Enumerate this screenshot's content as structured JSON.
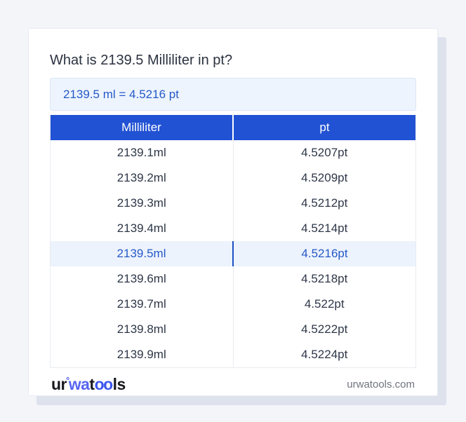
{
  "page": {
    "title": "What is 2139.5 Milliliter in pt?"
  },
  "result": {
    "text": "2139.5 ml = 4.5216 pt"
  },
  "table": {
    "headers": [
      "Milliliter",
      "pt"
    ],
    "rows": [
      {
        "ml": "2139.1ml",
        "pt": "4.5207pt"
      },
      {
        "ml": "2139.2ml",
        "pt": "4.5209pt"
      },
      {
        "ml": "2139.3ml",
        "pt": "4.5212pt"
      },
      {
        "ml": "2139.4ml",
        "pt": "4.5214pt"
      },
      {
        "ml": "2139.5ml",
        "pt": "4.5216pt"
      },
      {
        "ml": "2139.6ml",
        "pt": "4.5218pt"
      },
      {
        "ml": "2139.7ml",
        "pt": "4.522pt"
      },
      {
        "ml": "2139.8ml",
        "pt": "4.5222pt"
      },
      {
        "ml": "2139.9ml",
        "pt": "4.5224pt"
      }
    ],
    "highlighted_row_index": 4
  },
  "footer": {
    "logo": {
      "part1": "ur",
      "degree": "°",
      "part2": "wa",
      "part3": "t",
      "part4": "oo",
      "part5": "ls"
    },
    "domain": "urwatools.com"
  },
  "colors": {
    "page_background": "#f4f5f9",
    "card_shadow": "#dde2ed",
    "header_bg": "#2152d3",
    "highlight_bg": "#edf3fd",
    "highlight_divider": "#1d4fc4",
    "link_blue": "#2559c8",
    "result_bg": "#edf4fd",
    "row_text": "#2e3748",
    "logo_blue": "#5865f0",
    "domain_text": "#70747e"
  }
}
